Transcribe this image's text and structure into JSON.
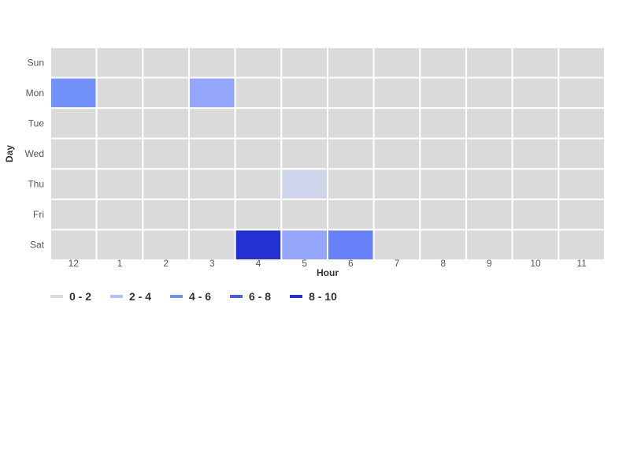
{
  "chart_data": {
    "type": "heatmap",
    "title": "",
    "xlabel": "Hour",
    "ylabel": "Day",
    "x_categories": [
      "12",
      "1",
      "2",
      "3",
      "4",
      "5",
      "6",
      "7",
      "8",
      "9",
      "10",
      "11"
    ],
    "y_categories": [
      "Sun",
      "Mon",
      "Tue",
      "Wed",
      "Thu",
      "Fri",
      "Sat"
    ],
    "values": [
      [
        0,
        0,
        0,
        0,
        0,
        0,
        0,
        0,
        0,
        0,
        0,
        0
      ],
      [
        5,
        0,
        0,
        4,
        0,
        0,
        0,
        0,
        0,
        0,
        0,
        0
      ],
      [
        0,
        0,
        0,
        0,
        0,
        0,
        0,
        0,
        0,
        0,
        0,
        0
      ],
      [
        0,
        0,
        0,
        0,
        0,
        0,
        0,
        0,
        0,
        0,
        0,
        0
      ],
      [
        0,
        0,
        0,
        0,
        0,
        2,
        0,
        0,
        0,
        0,
        0,
        0
      ],
      [
        0,
        0,
        0,
        0,
        0,
        0,
        0,
        0,
        0,
        0,
        0,
        0
      ],
      [
        0,
        0,
        0,
        0,
        9,
        4,
        6,
        0,
        0,
        0,
        0,
        0
      ]
    ],
    "legend": {
      "placement": "bottom-left",
      "bins": [
        {
          "label": "0 - 2",
          "min": 0,
          "max": 2,
          "color": "#dadada"
        },
        {
          "label": "2 - 4",
          "min": 2,
          "max": 4,
          "color": "#b3c1f7"
        },
        {
          "label": "4 - 6",
          "min": 4,
          "max": 6,
          "color": "#6f8cf7"
        },
        {
          "label": "6 - 8",
          "min": 6,
          "max": 8,
          "color": "#4a5fe0"
        },
        {
          "label": "8 - 10",
          "min": 8,
          "max": 10,
          "color": "#2430d1"
        }
      ]
    }
  },
  "cell_colors": {
    "0": "#dadada",
    "2": "#cfd6ec",
    "4": "#93a6fc",
    "5": "#7391fb",
    "6": "#6880f8",
    "9": "#2430d1"
  }
}
